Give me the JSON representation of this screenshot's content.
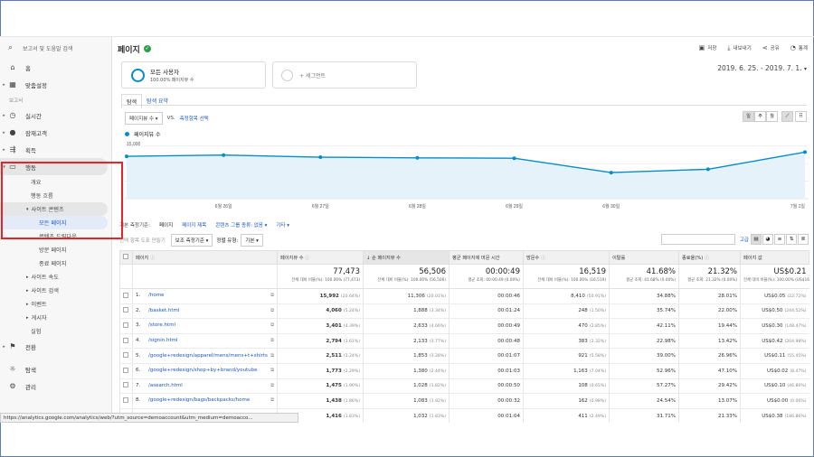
{
  "sidebar": {
    "search_placeholder": "보고서 및 도움말 검색",
    "home": "홈",
    "custom": "맞춤설정",
    "reports_section": "보고서",
    "realtime": "실시간",
    "audience": "잠재고객",
    "acquisition": "획득",
    "behavior": "행동",
    "overview": "개요",
    "flow": "행동 흐름",
    "site_content": "사이트 콘텐츠",
    "all_pages": "모든 페이지",
    "drilldown": "콘텐츠 드릴다운",
    "landing": "방문 페이지",
    "exit": "종료 페이지",
    "site_speed": "사이트 속도",
    "site_search": "사이트 검색",
    "events": "이벤트",
    "publisher": "게시자",
    "experiments": "실험",
    "conversions": "전환",
    "discover": "탐색",
    "admin": "관리"
  },
  "header": {
    "title": "페이지",
    "save": "저장",
    "export": "내보내기",
    "share": "공유",
    "insights": "통계"
  },
  "segment": {
    "name": "모든 사용자",
    "sub": "100.00% 페이지뷰 수",
    "add": "+ 세그먼트"
  },
  "date_range": "2019. 6. 25. - 2019. 7. 1.",
  "tabs": [
    "탐색",
    "탐색 요약"
  ],
  "metric": {
    "select": "페이지뷰 수",
    "vs": "VS.",
    "select_metric": "측정항목 선택"
  },
  "period_buttons": [
    "일",
    "주",
    "월"
  ],
  "chart_data": {
    "type": "line",
    "series": [
      {
        "name": "페이지뷰 수",
        "values": [
          12100,
          12450,
          11850,
          11650,
          11550,
          7450,
          8400,
          13300
        ]
      }
    ],
    "x": [
      "",
      "6월 26일",
      "6월 27일",
      "6월 28일",
      "6월 29일",
      "6월 30일",
      "",
      "7월 1일"
    ],
    "y_ticks": [
      "15,000",
      "10,000",
      "5,000"
    ],
    "ylim": [
      0,
      16500
    ],
    "legend": "페이지뷰 수",
    "grid": true,
    "color": "#058dc7"
  },
  "dimension_row": {
    "label": "기본 측정기준:",
    "page": "페이지",
    "page_title": "페이지 제목",
    "content_group": "콘텐츠 그룹 종류: 없음 ▾",
    "other": "기타 ▾"
  },
  "controls": {
    "plot_rows": "선택 항목 도표 만들기",
    "secondary": "보조 측정기준 ▾",
    "sort_type": "정렬 유형:",
    "sort_value": "기본 ▾",
    "advanced": "고급"
  },
  "table": {
    "headers": [
      "페이지",
      "페이지뷰 수",
      "순 페이지뷰 수",
      "평균 페이지에 머문 시간",
      "방문수",
      "이탈률",
      "종료율(%)",
      "페이지 값"
    ],
    "totals": [
      {
        "value": "77,473",
        "sub": "전체 대비 비율(%): 100.00% (77,473)"
      },
      {
        "value": "56,506",
        "sub": "전체 대비 비율(%): 100.00% (56,506)"
      },
      {
        "value": "00:00:49",
        "sub": "평균 조회: 00:00:49 (0.00%)"
      },
      {
        "value": "16,519",
        "sub": "전체 대비 비율(%): 100.00% (16,519)"
      },
      {
        "value": "41.68%",
        "sub": "평균 조회: 41.68% (0.00%)"
      },
      {
        "value": "21.32%",
        "sub": "평균 조회: 21.32% (0.00%)"
      },
      {
        "value": "US$0.21",
        "sub": "전체 대비 비율(%): 100.00% (US$16,0)"
      }
    ],
    "rows": [
      {
        "n": "1.",
        "page": "/home",
        "pv": "15,992",
        "pvp": "(20.64%)",
        "upv": "11,306",
        "upvp": "(20.01%)",
        "time": "00:00:46",
        "ent": "8,410",
        "entp": "(50.91%)",
        "bounce": "34.88%",
        "exit": "28.01%",
        "value": "US$0.05",
        "valp": "(22.72%)"
      },
      {
        "n": "2.",
        "page": "/basket.html",
        "pv": "4,060",
        "pvp": "(5.24%)",
        "upv": "1,888",
        "upvp": "(3.34%)",
        "time": "00:01:24",
        "ent": "248",
        "entp": "(1.50%)",
        "bounce": "35.74%",
        "exit": "22.00%",
        "value": "US$0.50",
        "valp": "(244.52%)"
      },
      {
        "n": "3.",
        "page": "/store.html",
        "pv": "3,401",
        "pvp": "(4.39%)",
        "upv": "2,633",
        "upvp": "(4.66%)",
        "time": "00:00:49",
        "ent": "470",
        "entp": "(2.85%)",
        "bounce": "42.11%",
        "exit": "19.44%",
        "value": "US$0.30",
        "valp": "(148.47%)"
      },
      {
        "n": "4.",
        "page": "/signin.html",
        "pv": "2,794",
        "pvp": "(3.61%)",
        "upv": "2,133",
        "upvp": "(3.77%)",
        "time": "00:00:48",
        "ent": "383",
        "entp": "(2.32%)",
        "bounce": "22.98%",
        "exit": "13.42%",
        "value": "US$0.42",
        "valp": "(204.98%)"
      },
      {
        "n": "5.",
        "page": "/google+redesign/apparel/mens/mens+t+shirts",
        "pv": "2,511",
        "pvp": "(3.24%)",
        "upv": "1,853",
        "upvp": "(3.28%)",
        "time": "00:01:07",
        "ent": "921",
        "entp": "(5.58%)",
        "bounce": "39.00%",
        "exit": "26.96%",
        "value": "US$0.11",
        "valp": "(55.45%)"
      },
      {
        "n": "6.",
        "page": "/google+redesign/shop+by+brand/youtube",
        "pv": "1,773",
        "pvp": "(2.29%)",
        "upv": "1,380",
        "upvp": "(2.44%)",
        "time": "00:01:03",
        "ent": "1,163",
        "entp": "(7.04%)",
        "bounce": "52.96%",
        "exit": "47.10%",
        "value": "US$0.02",
        "valp": "(8.47%)"
      },
      {
        "n": "7.",
        "page": "/asearch.html",
        "pv": "1,475",
        "pvp": "(1.90%)",
        "upv": "1,028",
        "upvp": "(1.82%)",
        "time": "00:00:50",
        "ent": "108",
        "entp": "(0.65%)",
        "bounce": "57.27%",
        "exit": "29.42%",
        "value": "US$0.10",
        "valp": "(46.80%)"
      },
      {
        "n": "8.",
        "page": "/google+redesign/bags/backpacks/home",
        "pv": "1,438",
        "pvp": "(1.86%)",
        "upv": "1,083",
        "upvp": "(1.92%)",
        "time": "00:00:32",
        "ent": "162",
        "entp": "(0.98%)",
        "bounce": "24.54%",
        "exit": "13.07%",
        "value": "US$0.00",
        "valp": "(0.00%)"
      },
      {
        "n": "9.",
        "page": "",
        "pv": "1,416",
        "pvp": "(1.83%)",
        "upv": "1,032",
        "upvp": "(1.83%)",
        "time": "00:01:04",
        "ent": "411",
        "entp": "(2.49%)",
        "bounce": "31.71%",
        "exit": "21.33%",
        "value": "US$0.38",
        "valp": "(186.86%)"
      }
    ]
  },
  "status_url": "https://analytics.google.com/analytics/web/?utm_source=demoaccount&utm_medium=demoacco..."
}
